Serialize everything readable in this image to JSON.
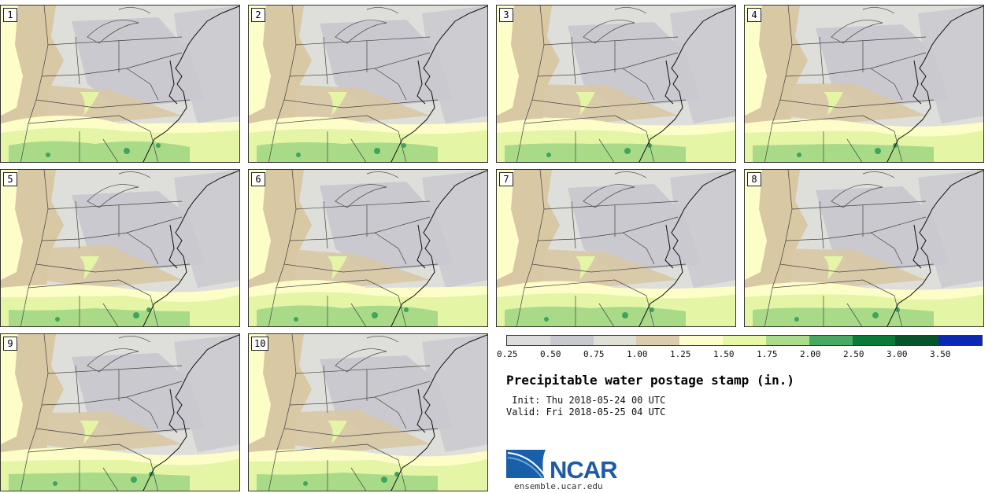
{
  "stamps": [
    {
      "label": "1"
    },
    {
      "label": "2"
    },
    {
      "label": "3"
    },
    {
      "label": "4"
    },
    {
      "label": "5"
    },
    {
      "label": "6"
    },
    {
      "label": "7"
    },
    {
      "label": "8"
    },
    {
      "label": "9"
    },
    {
      "label": "10"
    }
  ],
  "colorbar": {
    "ticks": [
      "0.25",
      "0.50",
      "0.75",
      "1.00",
      "1.25",
      "1.50",
      "1.75",
      "2.00",
      "2.50",
      "3.00",
      "3.50"
    ],
    "colors": [
      "#dcdcdc",
      "#c8c8d0",
      "#e0e0d6",
      "#dcccaa",
      "#fdfdcc",
      "#e6f7a8",
      "#aadc8c",
      "#46aa60",
      "#0a7a38",
      "#08542a",
      "#0a28b4"
    ]
  },
  "title": "Precipitable water postage stamp (in.)",
  "init": " Init: Thu 2018-05-24 00 UTC",
  "valid": "Valid: Fri 2018-05-25 04 UTC",
  "logo": {
    "brand": "NCAR",
    "url": "ensemble.ucar.edu"
  },
  "map_colors": {
    "gray": "#c9c9cf",
    "light": "#dededa",
    "tan": "#d8c8a4",
    "cream": "#fdfdc8",
    "lightgreen": "#e4f5a6",
    "green": "#a9da88",
    "darkgreen": "#3fa45e"
  }
}
